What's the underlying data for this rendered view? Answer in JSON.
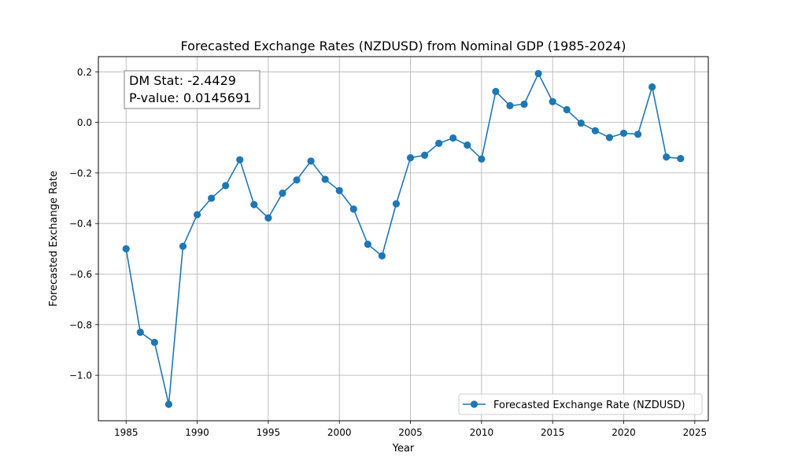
{
  "chart_data": {
    "type": "line",
    "title": "Forecasted Exchange Rates (NZDUSD) from Nominal GDP (1985-2024)",
    "xlabel": "Year",
    "ylabel": "Forecasted Exchange Rate",
    "xlim": [
      1983.05,
      2025.95
    ],
    "ylim": [
      -1.18,
      0.26
    ],
    "xticks": [
      1985,
      1990,
      1995,
      2000,
      2005,
      2010,
      2015,
      2020,
      2025
    ],
    "yticks": [
      -1.0,
      -0.8,
      -0.6,
      -0.4,
      -0.2,
      0.0,
      0.2
    ],
    "ytick_labels": [
      "−1.0",
      "−0.8",
      "−0.6",
      "−0.4",
      "−0.2",
      "0.0",
      "0.2"
    ],
    "grid": true,
    "legend_position": "lower-right",
    "annotation": [
      "DM Stat: -2.4429",
      "P-value: 0.0145691"
    ],
    "series": [
      {
        "name": "Forecasted Exchange Rate (NZDUSD)",
        "color": "#1f77b4",
        "marker": "circle",
        "x": [
          1985,
          1986,
          1987,
          1988,
          1989,
          1990,
          1991,
          1992,
          1993,
          1994,
          1995,
          1996,
          1997,
          1998,
          1999,
          2000,
          2001,
          2002,
          2003,
          2004,
          2005,
          2006,
          2007,
          2008,
          2009,
          2010,
          2011,
          2012,
          2013,
          2014,
          2015,
          2016,
          2017,
          2018,
          2019,
          2020,
          2021,
          2022,
          2023,
          2024
        ],
        "y": [
          -0.5,
          -0.83,
          -0.87,
          -1.115,
          -0.49,
          -0.365,
          -0.3,
          -0.25,
          -0.148,
          -0.325,
          -0.378,
          -0.28,
          -0.228,
          -0.153,
          -0.225,
          -0.27,
          -0.343,
          -0.482,
          -0.528,
          -0.322,
          -0.14,
          -0.13,
          -0.083,
          -0.062,
          -0.09,
          -0.145,
          0.122,
          0.066,
          0.072,
          0.193,
          0.082,
          0.05,
          -0.003,
          -0.033,
          -0.06,
          -0.043,
          -0.047,
          0.14,
          -0.137,
          -0.143
        ]
      }
    ]
  }
}
